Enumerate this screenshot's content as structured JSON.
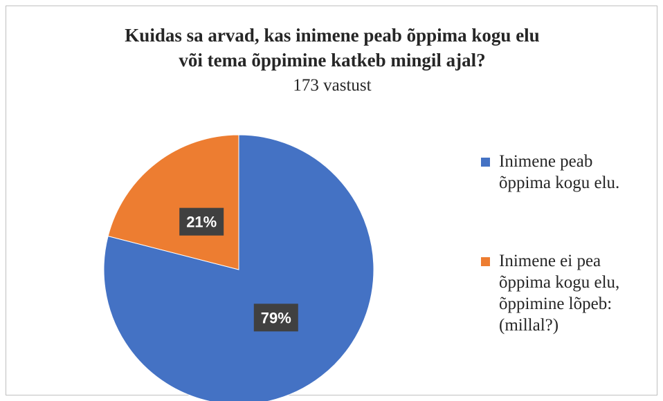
{
  "chart_data": {
    "type": "pie",
    "title": [
      "Kuidas sa arvad, kas inimene peab õppima kogu elu",
      "või tema õppimine katkeb mingil ajal?"
    ],
    "subtitle": "173 vastust",
    "categories": [
      "Inimene peab õppima kogu elu.",
      "Inimene ei pea õppima kogu elu, õppimine lõpeb: (millal?)"
    ],
    "values": [
      79,
      21
    ],
    "value_labels": [
      "79%",
      "21%"
    ],
    "colors": [
      "#4472c4",
      "#ed7d31"
    ],
    "legend": "right"
  }
}
